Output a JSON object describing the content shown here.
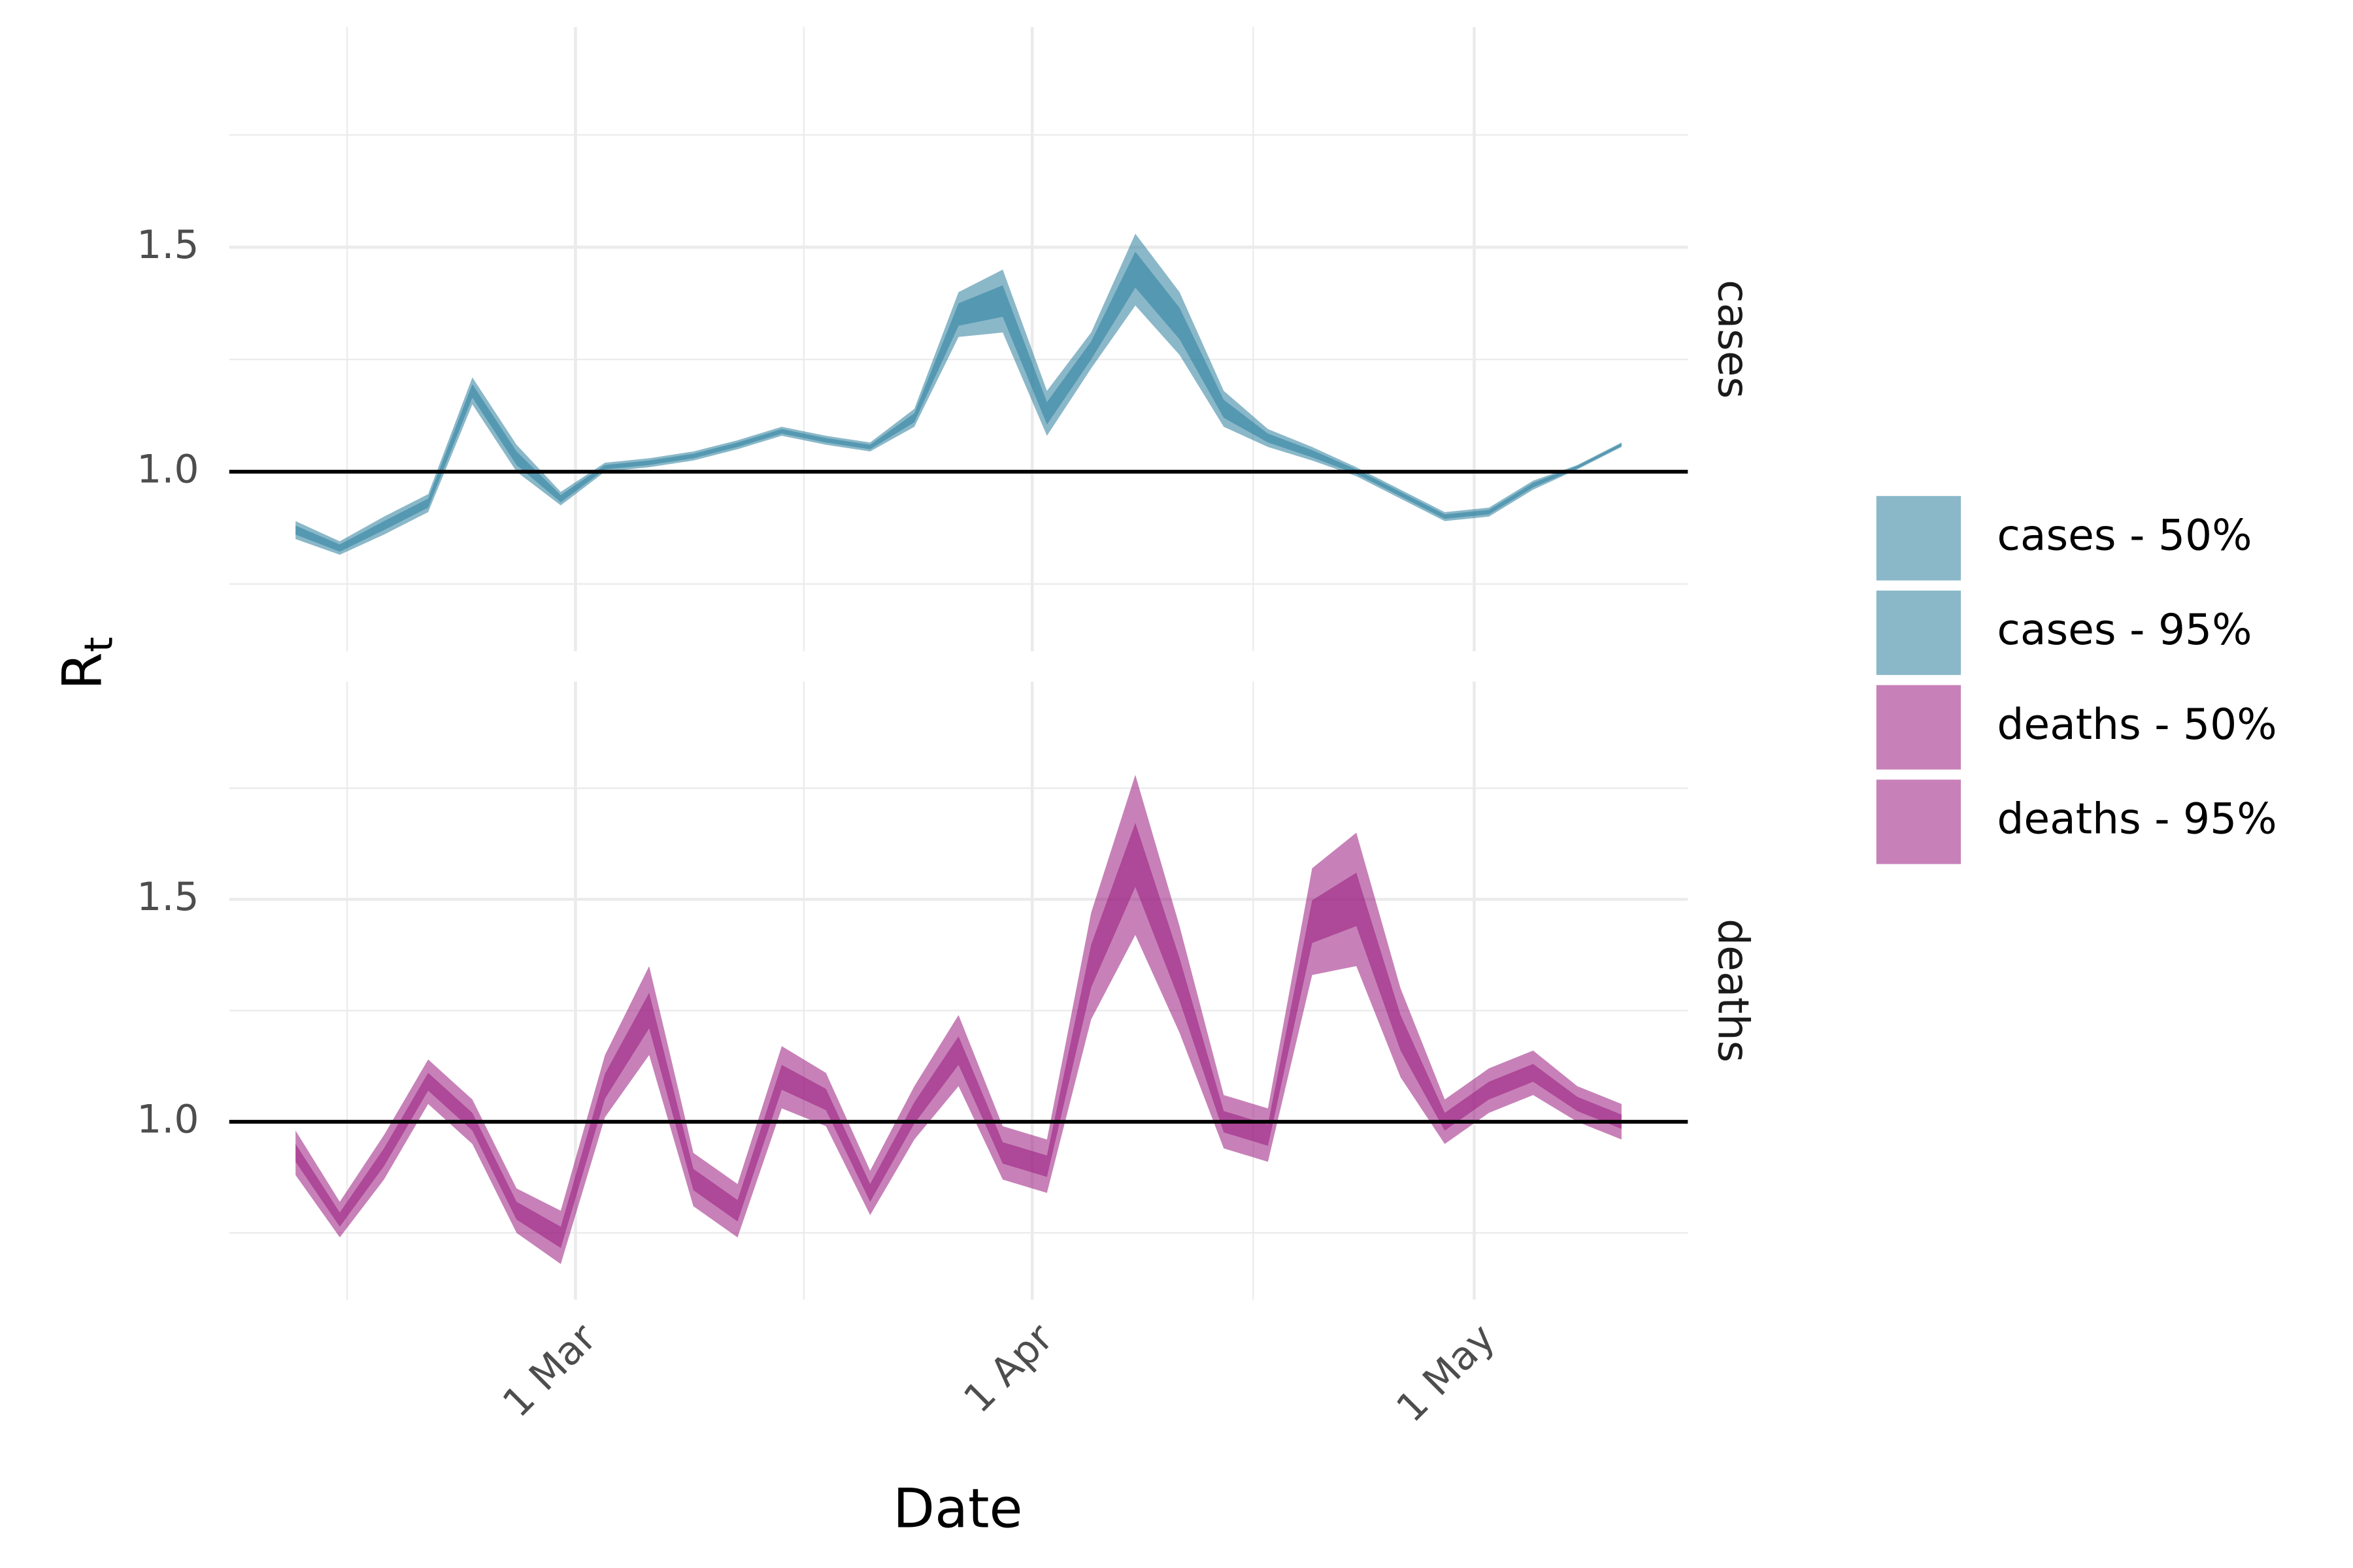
{
  "chart_data": {
    "type": "ribbon",
    "xlabel": "Date",
    "ylabel": "R",
    "ylabel_subscript": "t",
    "x": [
      42,
      45,
      48,
      51,
      54,
      57,
      60,
      63,
      66,
      69,
      72,
      75,
      78,
      81,
      84,
      87,
      90,
      93,
      96,
      99,
      102,
      105,
      108,
      111,
      114,
      117,
      120,
      123,
      126,
      129,
      132
    ],
    "xlim": [
      37.5,
      136.5
    ],
    "xticks": [
      {
        "value": 61,
        "label": "1 Mar"
      },
      {
        "value": 92,
        "label": "1 Apr"
      },
      {
        "value": 122,
        "label": "1 May"
      }
    ],
    "xminor": [
      45.5,
      76.5,
      107
    ],
    "ylim": [
      0.6,
      1.99
    ],
    "yticks": [
      {
        "value": 1,
        "label": "1.0"
      },
      {
        "value": 1.5,
        "label": "1.5"
      }
    ],
    "yminor": [
      0.75,
      1.25,
      1.75
    ],
    "reference_line": 1,
    "alpha": 0.55,
    "grid": true,
    "legend": "right",
    "facets": [
      {
        "label": "cases",
        "series": [
          {
            "name": "cases - 50%",
            "color": "#2a7e9d",
            "lower": [
              0.86,
              0.822,
              0.87,
              0.92,
              1.165,
              1.015,
              0.932,
              1.005,
              1.015,
              1.03,
              1.055,
              1.085,
              1.065,
              1.05,
              1.11,
              1.325,
              1.345,
              1.105,
              1.25,
              1.41,
              1.295,
              1.12,
              1.065,
              1.032,
              0.995,
              0.945,
              0.895,
              0.905,
              0.965,
              1.007,
              1.057
            ],
            "upper": [
              0.88,
              0.838,
              0.89,
              0.94,
              1.195,
              1.045,
              0.948,
              1.015,
              1.025,
              1.04,
              1.065,
              1.095,
              1.075,
              1.06,
              1.13,
              1.375,
              1.415,
              1.155,
              1.29,
              1.49,
              1.365,
              1.16,
              1.085,
              1.048,
              1.005,
              0.955,
              0.905,
              0.915,
              0.975,
              1.013,
              1.063
            ]
          },
          {
            "name": "cases - 95%",
            "color": "#2a7e9d",
            "lower": [
              0.85,
              0.815,
              0.86,
              0.91,
              1.15,
              1.0,
              0.925,
              1.0,
              1.01,
              1.025,
              1.05,
              1.08,
              1.06,
              1.045,
              1.1,
              1.3,
              1.31,
              1.08,
              1.23,
              1.37,
              1.26,
              1.1,
              1.055,
              1.025,
              0.99,
              0.94,
              0.89,
              0.9,
              0.96,
              1.005,
              1.055
            ],
            "upper": [
              0.89,
              0.845,
              0.9,
              0.95,
              1.21,
              1.06,
              0.955,
              1.02,
              1.03,
              1.045,
              1.07,
              1.1,
              1.08,
              1.065,
              1.14,
              1.4,
              1.45,
              1.18,
              1.31,
              1.53,
              1.4,
              1.18,
              1.095,
              1.055,
              1.01,
              0.96,
              0.91,
              0.92,
              0.98,
              1.015,
              1.065
            ]
          }
        ]
      },
      {
        "label": "deaths",
        "series": [
          {
            "name": "deaths - 50%",
            "color": "#991a7d",
            "lower": [
              0.91,
              0.764,
              0.9,
              1.07,
              0.98,
              0.78,
              0.716,
              1.052,
              1.21,
              0.846,
              0.776,
              1.072,
              1.026,
              0.82,
              0.996,
              1.128,
              0.906,
              0.876,
              1.302,
              1.528,
              1.272,
              0.976,
              0.946,
              1.402,
              1.44,
              1.16,
              0.98,
              1.05,
              1.09,
              1.024,
              0.984
            ],
            "upper": [
              0.95,
              0.796,
              0.94,
              1.11,
              1.02,
              0.82,
              0.764,
              1.108,
              1.29,
              0.894,
              0.824,
              1.128,
              1.074,
              0.86,
              1.044,
              1.192,
              0.954,
              0.924,
              1.398,
              1.672,
              1.368,
              1.024,
              0.994,
              1.498,
              1.56,
              1.24,
              1.02,
              1.09,
              1.13,
              1.056,
              1.016
            ]
          },
          {
            "name": "deaths - 95%",
            "color": "#991a7d",
            "lower": [
              0.88,
              0.74,
              0.87,
              1.04,
              0.95,
              0.75,
              0.68,
              1.01,
              1.15,
              0.81,
              0.74,
              1.03,
              0.99,
              0.79,
              0.96,
              1.08,
              0.87,
              0.84,
              1.23,
              1.42,
              1.2,
              0.94,
              0.91,
              1.33,
              1.35,
              1.1,
              0.95,
              1.02,
              1.06,
              1.0,
              0.96
            ],
            "upper": [
              0.98,
              0.82,
              0.97,
              1.14,
              1.05,
              0.85,
              0.8,
              1.15,
              1.35,
              0.93,
              0.86,
              1.17,
              1.11,
              0.89,
              1.08,
              1.24,
              0.99,
              0.96,
              1.47,
              1.78,
              1.44,
              1.06,
              1.03,
              1.57,
              1.65,
              1.3,
              1.05,
              1.12,
              1.16,
              1.08,
              1.04
            ]
          }
        ]
      }
    ]
  }
}
